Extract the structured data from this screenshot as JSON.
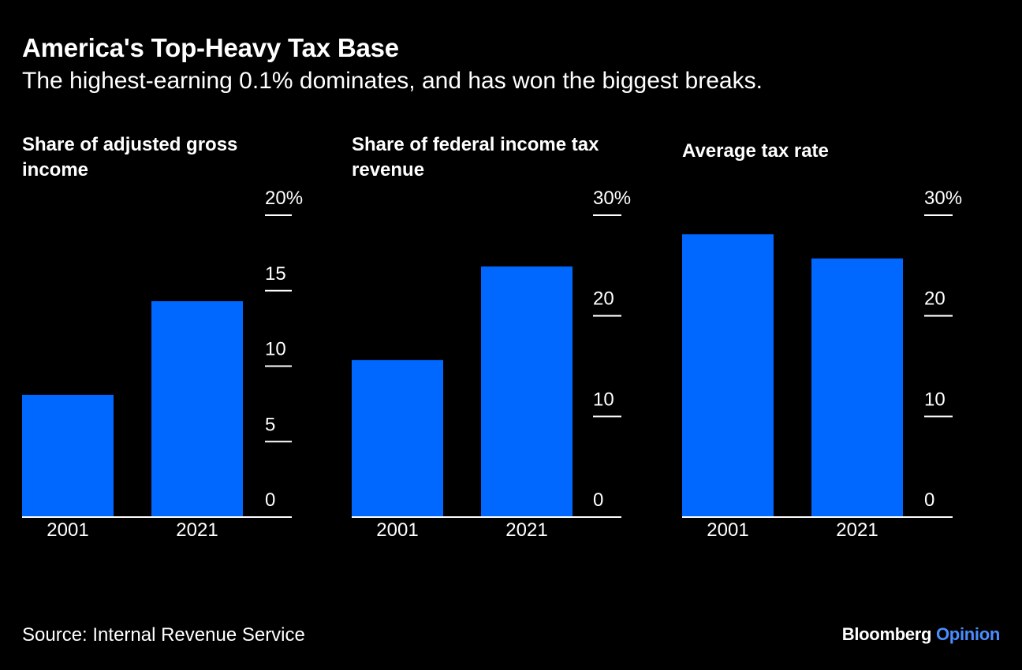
{
  "title": "America's Top-Heavy Tax Base",
  "subtitle": "The highest-earning 0.1% dominates, and has won the biggest breaks.",
  "source": "Source: Internal Revenue Service",
  "brand": {
    "name": "Bloomberg",
    "section": "Opinion"
  },
  "colors": {
    "background": "#000000",
    "bar": "#0068ff",
    "text": "#ffffff",
    "brand_accent": "#4a8dff"
  },
  "chart_data": [
    {
      "type": "bar",
      "title": "Share of adjusted gross income",
      "categories": [
        "2001",
        "2021"
      ],
      "values": [
        8.1,
        14.3
      ],
      "ylim": [
        0,
        20
      ],
      "yticks": [
        0,
        5,
        10,
        15,
        20
      ],
      "ytick_labels": [
        "0",
        "5",
        "10",
        "15",
        "20%"
      ],
      "grid": false,
      "axis_position": "right"
    },
    {
      "type": "bar",
      "title": "Share of federal income tax revenue",
      "categories": [
        "2001",
        "2021"
      ],
      "values": [
        15.6,
        24.9
      ],
      "ylim": [
        0,
        30
      ],
      "yticks": [
        0,
        10,
        20,
        30
      ],
      "ytick_labels": [
        "0",
        "10",
        "20",
        "30%"
      ],
      "grid": false,
      "axis_position": "right"
    },
    {
      "type": "bar",
      "title": "Average tax rate",
      "categories": [
        "2001",
        "2021"
      ],
      "values": [
        28.1,
        25.7
      ],
      "ylim": [
        0,
        30
      ],
      "yticks": [
        0,
        10,
        20,
        30
      ],
      "ytick_labels": [
        "0",
        "10",
        "20",
        "30%"
      ],
      "grid": false,
      "axis_position": "right"
    }
  ]
}
